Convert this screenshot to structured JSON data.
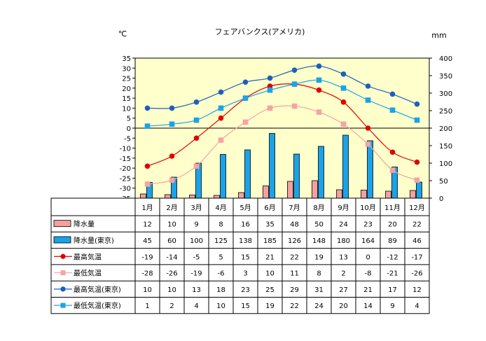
{
  "chart_data": {
    "type": "bar",
    "title": "フェアバンクス(アメリカ)",
    "y_left_unit": "℃",
    "y_right_unit": "mm",
    "y_left_lim": [
      -35,
      35
    ],
    "y_right_lim": [
      0,
      400
    ],
    "y_left_ticks": [
      "35",
      "30",
      "25",
      "20",
      "15",
      "10",
      "5",
      "0",
      "-5",
      "-10",
      "-15",
      "-20",
      "-25",
      "-30",
      "-35"
    ],
    "y_right_ticks": [
      "400",
      "350",
      "300",
      "250",
      "200",
      "150",
      "100",
      "50",
      "0"
    ],
    "grid": false,
    "categories": [
      "1月",
      "2月",
      "3月",
      "4月",
      "5月",
      "6月",
      "7月",
      "8月",
      "9月",
      "10月",
      "11月",
      "12月"
    ],
    "series": [
      {
        "name": "降水量",
        "kind": "bar",
        "axis": "right",
        "color": "#f4a0a0",
        "values": [
          12,
          10,
          9,
          8,
          16,
          35,
          48,
          50,
          24,
          23,
          20,
          22
        ],
        "cells": [
          "12",
          "10",
          "9",
          "8",
          "16",
          "35",
          "48",
          "50",
          "24",
          "23",
          "20",
          "22"
        ]
      },
      {
        "name": "降水量(東京)",
        "kind": "bar",
        "axis": "right",
        "color": "#1aa3e8",
        "values": [
          45,
          60,
          100,
          125,
          138,
          185,
          126,
          148,
          180,
          164,
          89,
          46
        ],
        "cells": [
          "45",
          "60",
          "100",
          "125",
          "138",
          "185",
          "126",
          "148",
          "180",
          "164",
          "89",
          "46"
        ]
      },
      {
        "name": "最高気温",
        "kind": "line",
        "axis": "left",
        "color": "#e00000",
        "marker": "circle",
        "values": [
          -19,
          -14,
          -5,
          5,
          15,
          21,
          22,
          19,
          13,
          0,
          -12,
          -17
        ],
        "cells": [
          "-19",
          "-14",
          "-5",
          "5",
          "15",
          "21",
          "22",
          "19",
          "13",
          "0",
          "-12",
          "-17"
        ]
      },
      {
        "name": "最低気温",
        "kind": "line",
        "axis": "left",
        "color": "#f6a3a3",
        "marker": "square",
        "values": [
          -28,
          -26,
          -19,
          -6,
          3,
          10,
          11,
          8,
          2,
          -8,
          -21,
          -26
        ],
        "cells": [
          "-28",
          "-26",
          "-19",
          "-6",
          "3",
          "10",
          "11",
          "8",
          "2",
          "-8",
          "-21",
          "-26"
        ]
      },
      {
        "name": "最高気温(東京)",
        "kind": "line",
        "axis": "left",
        "color": "#1c5fbd",
        "marker": "circle",
        "values": [
          10,
          10,
          13,
          18,
          23,
          25,
          29,
          31,
          27,
          21,
          17,
          12
        ],
        "cells": [
          "10",
          "10",
          "13",
          "18",
          "23",
          "25",
          "29",
          "31",
          "27",
          "21",
          "17",
          "12"
        ]
      },
      {
        "name": "最低気温(東京)",
        "kind": "line",
        "axis": "left",
        "color": "#1aa3e8",
        "marker": "square",
        "values": [
          1,
          2,
          4,
          10,
          15,
          19,
          22,
          24,
          20,
          14,
          9,
          4
        ],
        "cells": [
          "1",
          "2",
          "4",
          "10",
          "15",
          "19",
          "22",
          "24",
          "20",
          "14",
          "9",
          "4"
        ]
      }
    ]
  },
  "colors": {
    "plot_background": "#ffffcc",
    "line_curve": "smooth"
  }
}
